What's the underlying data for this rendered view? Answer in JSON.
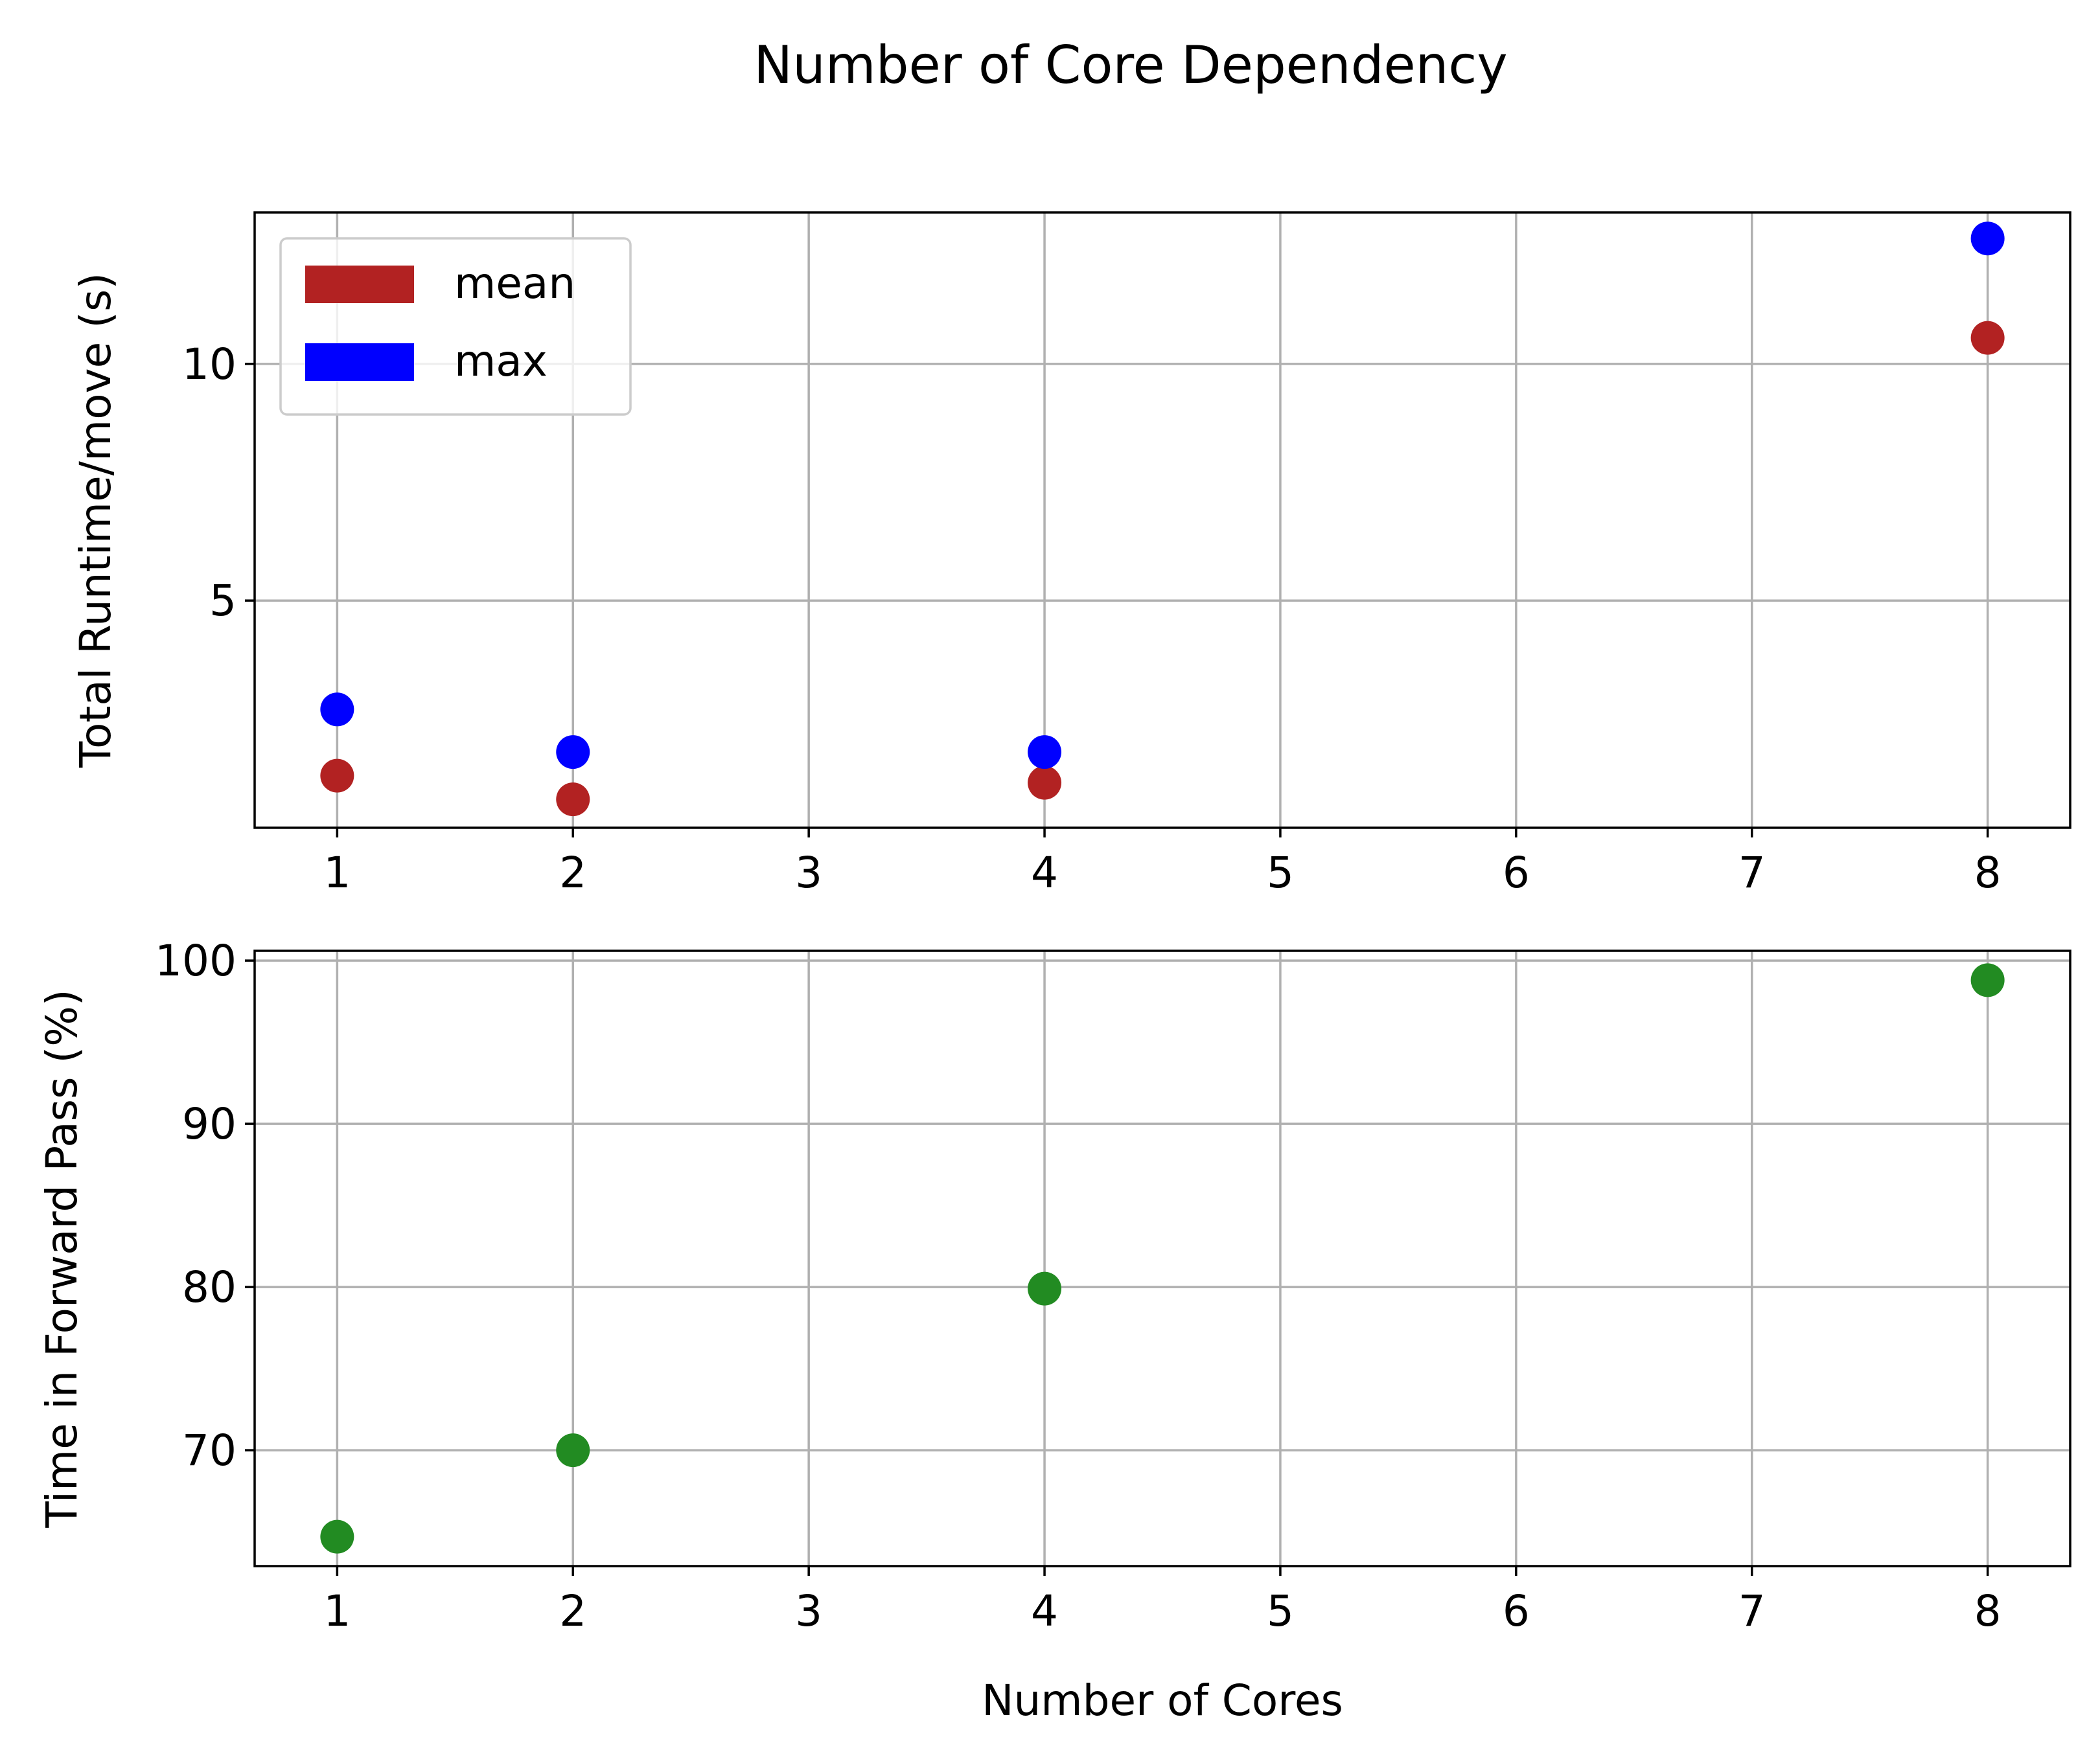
{
  "figure": {
    "title": "Number of Core Dependency"
  },
  "chart_data": [
    {
      "type": "scatter",
      "title": "",
      "xlabel": "",
      "ylabel": "Total Runtime/move (s)",
      "xlim": [
        0.65,
        8.35
      ],
      "ylim": [
        0.2,
        13.2
      ],
      "xticks": [
        1,
        2,
        3,
        4,
        5,
        6,
        7,
        8
      ],
      "yticks": [
        5,
        10
      ],
      "grid": true,
      "legend": {
        "position": "top-left",
        "entries": [
          {
            "label": "mean",
            "color": "#b22222"
          },
          {
            "label": "max",
            "color": "#0000ff"
          }
        ]
      },
      "series": [
        {
          "name": "mean",
          "color": "#b22222",
          "x": [
            1,
            2,
            4,
            8
          ],
          "y": [
            1.3,
            0.8,
            1.15,
            10.55
          ]
        },
        {
          "name": "max",
          "color": "#0000ff",
          "x": [
            1,
            2,
            4,
            8
          ],
          "y": [
            2.7,
            1.8,
            1.8,
            12.65
          ]
        }
      ]
    },
    {
      "type": "scatter",
      "title": "",
      "xlabel": "Number of Cores",
      "ylabel": "Time in Forward Pass (%)",
      "xlim": [
        0.65,
        8.35
      ],
      "ylim": [
        62.9,
        100.6
      ],
      "xticks": [
        1,
        2,
        3,
        4,
        5,
        6,
        7,
        8
      ],
      "yticks": [
        70,
        80,
        90,
        100
      ],
      "grid": true,
      "series": [
        {
          "color": "#228b22",
          "x": [
            1,
            2,
            4,
            8
          ],
          "y": [
            64.7,
            70.0,
            79.9,
            98.8
          ]
        }
      ]
    }
  ]
}
